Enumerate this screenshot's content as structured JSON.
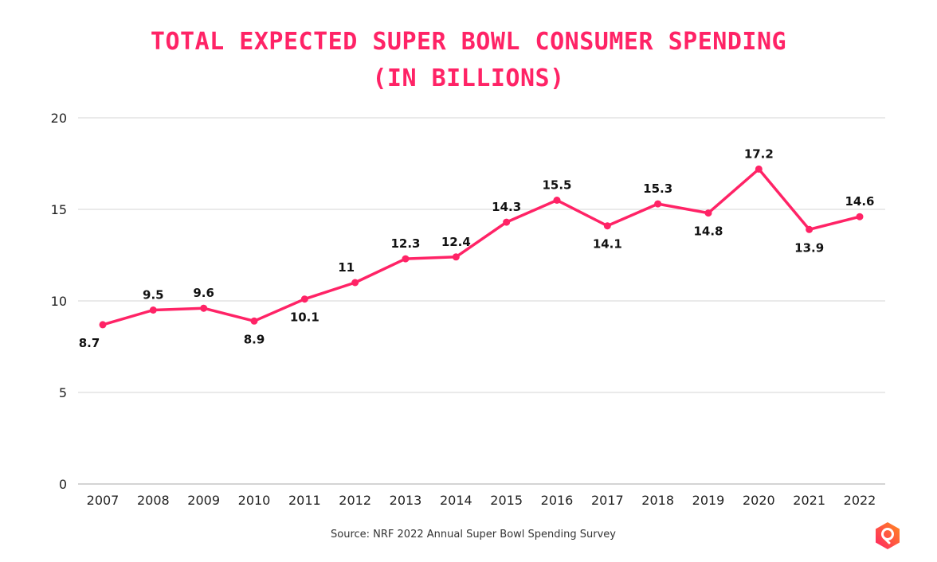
{
  "chart_data": {
    "type": "line",
    "title_lines": [
      "TOTAL EXPECTED SUPER BOWL CONSUMER SPENDING",
      "(IN BILLIONS)"
    ],
    "categories": [
      "2007",
      "2008",
      "2009",
      "2010",
      "2011",
      "2012",
      "2013",
      "2014",
      "2015",
      "2016",
      "2017",
      "2018",
      "2019",
      "2020",
      "2021",
      "2022"
    ],
    "values": [
      8.7,
      9.5,
      9.6,
      8.9,
      10.1,
      11,
      12.3,
      12.4,
      14.3,
      15.5,
      14.1,
      15.3,
      14.8,
      17.2,
      13.9,
      14.6
    ],
    "data_labels": [
      "8.7",
      "9.5",
      "9.6",
      "8.9",
      "10.1",
      "11",
      "12.3",
      "12.4",
      "14.3",
      "15.5",
      "14.1",
      "15.3",
      "14.8",
      "17.2",
      "13.9",
      "14.6"
    ],
    "label_positions": [
      "below",
      "above",
      "above",
      "below",
      "below",
      "above",
      "above",
      "above",
      "above",
      "above",
      "below",
      "above",
      "below",
      "above",
      "below",
      "above"
    ],
    "yticks": [
      0,
      5,
      10,
      15,
      20
    ],
    "ylim": [
      0,
      20
    ],
    "grid": true,
    "line_color": "#ff2366",
    "source": "Source: NRF 2022 Annual Super Bowl Spending Survey"
  },
  "logo": {
    "icon": "location-pin-hexagon-logo",
    "colors": [
      "#ff2366",
      "#ff8a1e"
    ]
  }
}
